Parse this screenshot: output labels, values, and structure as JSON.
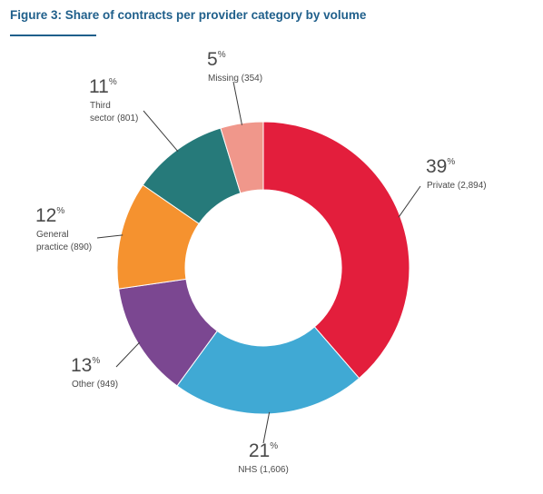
{
  "figure": {
    "title": "Figure 3: Share of contracts per provider category by volume"
  },
  "chart_data": {
    "type": "pie",
    "donut": true,
    "title": "Figure 3: Share of contracts per provider category by volume",
    "slices": [
      {
        "name": "Private",
        "value": 2894,
        "percent": 39,
        "percent_label": "39",
        "label": "Private (2,894)",
        "label_lines": [
          "Private (2,894)"
        ],
        "color": "#e31e3c"
      },
      {
        "name": "NHS",
        "value": 1606,
        "percent": 21,
        "percent_label": "21",
        "label": "NHS (1,606)",
        "label_lines": [
          "NHS (1,606)"
        ],
        "color": "#40a9d4"
      },
      {
        "name": "Other",
        "value": 949,
        "percent": 13,
        "percent_label": "13",
        "label": "Other (949)",
        "label_lines": [
          "Other (949)"
        ],
        "color": "#7b4791"
      },
      {
        "name": "General practice",
        "value": 890,
        "percent": 12,
        "percent_label": "12",
        "label": "General practice (890)",
        "label_lines": [
          "General",
          "practice (890)"
        ],
        "color": "#f5922f"
      },
      {
        "name": "Third sector",
        "value": 801,
        "percent": 11,
        "percent_label": "11",
        "label": "Third sector (801)",
        "label_lines": [
          "Third",
          "sector (801)"
        ],
        "color": "#267a7a"
      },
      {
        "name": "Missing",
        "value": 354,
        "percent": 5,
        "percent_label": "5",
        "label": "Missing (354)",
        "label_lines": [
          "Missing (354)"
        ],
        "color": "#f0978b"
      }
    ],
    "percent_sign": "%"
  }
}
